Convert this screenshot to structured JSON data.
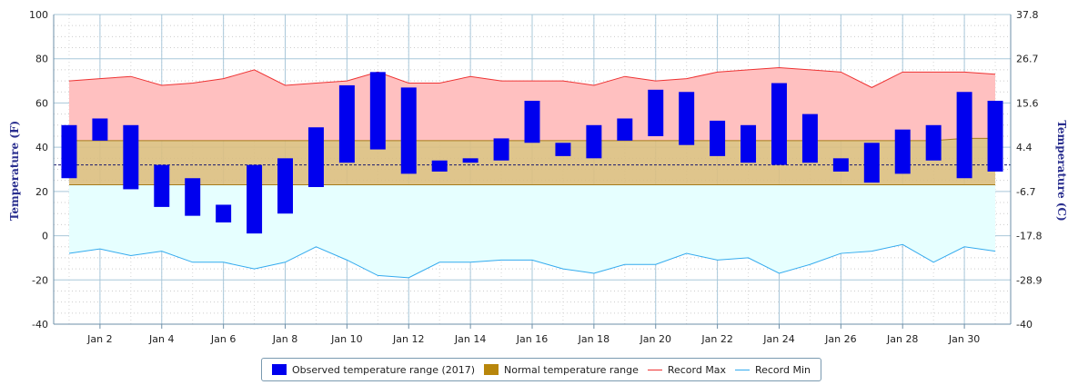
{
  "chart_data": {
    "type": "bar",
    "y_left": {
      "label": "Temperature (F)",
      "ticks": [
        100,
        80,
        60,
        40,
        20,
        0,
        -20,
        -40
      ],
      "lim": [
        -40,
        100
      ]
    },
    "y_right": {
      "label": "Temperature (C)",
      "ticks": [
        "37.8",
        "26.7",
        "15.6",
        "4.4",
        "-6.7",
        "-17.8",
        "-28.9",
        "-40"
      ]
    },
    "x": {
      "days": [
        1,
        2,
        3,
        4,
        5,
        6,
        7,
        8,
        9,
        10,
        11,
        12,
        13,
        14,
        15,
        16,
        17,
        18,
        19,
        20,
        21,
        22,
        23,
        24,
        25,
        26,
        27,
        28,
        29,
        30,
        31
      ],
      "tick_labels": [
        "Jan 2",
        "Jan 4",
        "Jan 6",
        "Jan 8",
        "Jan 10",
        "Jan 12",
        "Jan 14",
        "Jan 16",
        "Jan 18",
        "Jan 20",
        "Jan 22",
        "Jan 24",
        "Jan 26",
        "Jan 28",
        "Jan 30"
      ],
      "tick_days": [
        2,
        4,
        6,
        8,
        10,
        12,
        14,
        16,
        18,
        20,
        22,
        24,
        26,
        28,
        30
      ]
    },
    "reference_line_value": 32,
    "series": [
      {
        "name": "Observed temperature range (2017)",
        "color": "#0000ee",
        "low": [
          26,
          43,
          21,
          13,
          9,
          6,
          1,
          10,
          22,
          33,
          39,
          28,
          29,
          33,
          34,
          42,
          36,
          35,
          43,
          45,
          41,
          36,
          33,
          32,
          33,
          29,
          24,
          28,
          34,
          26,
          29
        ],
        "high": [
          50,
          53,
          50,
          32,
          26,
          14,
          32,
          35,
          49,
          68,
          74,
          67,
          34,
          35,
          44,
          61,
          42,
          50,
          53,
          66,
          65,
          52,
          50,
          69,
          55,
          35,
          42,
          48,
          50,
          65,
          61
        ]
      },
      {
        "name": "Normal temperature range",
        "color": "#b8860b",
        "low": [
          23,
          23,
          23,
          23,
          23,
          23,
          23,
          23,
          23,
          23,
          23,
          23,
          23,
          23,
          23,
          23,
          23,
          23,
          23,
          23,
          23,
          23,
          23,
          23,
          23,
          23,
          23,
          23,
          23,
          23,
          23
        ],
        "high": [
          43,
          43,
          43,
          43,
          43,
          43,
          43,
          43,
          43,
          43,
          43,
          43,
          43,
          43,
          43,
          43,
          43,
          43,
          43,
          43,
          43,
          43,
          43,
          43,
          43,
          43,
          43,
          43,
          43,
          44,
          44
        ]
      },
      {
        "name": "Record Max",
        "color": "#ee3333",
        "values": [
          70,
          71,
          72,
          68,
          69,
          71,
          75,
          68,
          69,
          70,
          74,
          69,
          69,
          72,
          70,
          70,
          70,
          68,
          72,
          70,
          71,
          74,
          75,
          76,
          75,
          74,
          67,
          74,
          74,
          74,
          73
        ]
      },
      {
        "name": "Record Min",
        "color": "#33aaee",
        "values": [
          -8,
          -6,
          -9,
          -7,
          -12,
          -12,
          -15,
          -12,
          -5,
          -11,
          -18,
          -19,
          -12,
          -12,
          -11,
          -11,
          -15,
          -17,
          -13,
          -13,
          -8,
          -11,
          -10,
          -17,
          -13,
          -8,
          -7,
          -4,
          -12,
          -5,
          -7
        ]
      }
    ]
  },
  "legend": {
    "observed": "Observed temperature range (2017)",
    "normal": "Normal temperature range",
    "record_max": "Record Max",
    "record_min": "Record Min"
  },
  "colors": {
    "observed": "#0000ee",
    "normal": "#b8860b",
    "record_max": "#ee3333",
    "record_min": "#33aaee"
  }
}
